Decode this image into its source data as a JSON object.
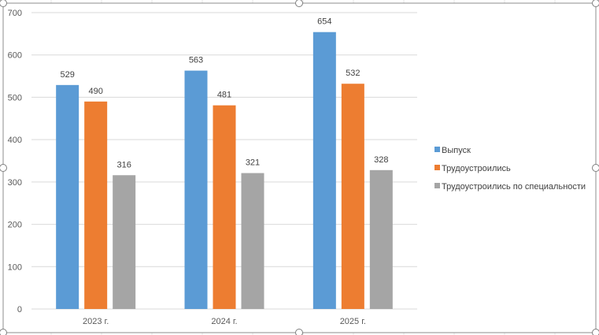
{
  "chart_data": {
    "type": "bar",
    "title": "",
    "xlabel": "",
    "ylabel": "",
    "categories": [
      "2023 г.",
      "2024 г.",
      "2025 г."
    ],
    "series": [
      {
        "name": "Выпуск",
        "values": [
          529,
          563,
          654
        ],
        "color": "#5B9BD5"
      },
      {
        "name": "Трудоустроились",
        "values": [
          490,
          481,
          532
        ],
        "color": "#ED7D31"
      },
      {
        "name": "Трудоустроились по специальности",
        "values": [
          316,
          321,
          328
        ],
        "color": "#A5A5A5"
      }
    ],
    "ylim": [
      0,
      700
    ],
    "yticks": [
      0,
      100,
      200,
      300,
      400,
      500,
      600,
      700
    ],
    "grid": true,
    "legend": "right",
    "data_labels": true
  }
}
